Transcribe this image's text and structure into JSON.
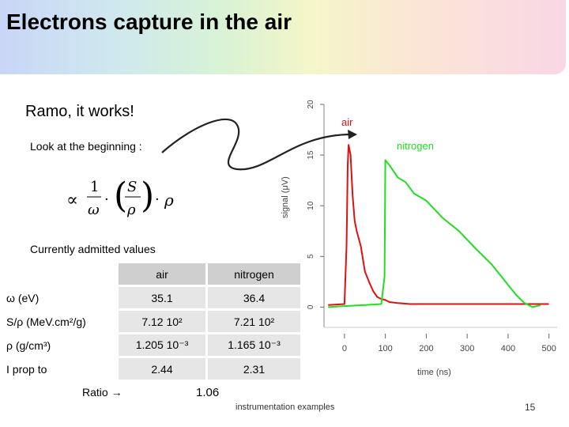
{
  "slide": {
    "title": "Electrons capture in the air",
    "subtitle": "Ramo, it works!",
    "look_text": "Look at the beginning :",
    "formula": {
      "prefix": "∝",
      "one": "1",
      "omega": "ω",
      "dot": "·",
      "s": "S",
      "rho": "ρ",
      "rho2": "ρ"
    },
    "currently_text": "Currently admitted values",
    "table": {
      "headers": [
        "air",
        "nitrogen"
      ],
      "rows": [
        {
          "label": "ω (eV)",
          "air": "35.1",
          "nitrogen": "36.4"
        },
        {
          "label": "S/ρ (MeV.cm²/g)",
          "air": "7.12 10²",
          "nitrogen": "7.21 10²"
        },
        {
          "label": "ρ (g/cm³)",
          "air": "1.205 10⁻³",
          "nitrogen": "1.165 10⁻³"
        },
        {
          "label": "I prop to",
          "air": "2.44",
          "nitrogen": "2.31"
        }
      ]
    },
    "ratio_label": "Ratio",
    "ratio_value": "1.06",
    "footer": "instrumentation examples",
    "page_number": "15",
    "colors": {
      "air": "#dd1111",
      "nitrogen": "#22dd22"
    }
  },
  "chart_data": {
    "type": "line",
    "ylabel": "signal (μV)",
    "xlabel": "time (ns)",
    "xlim": [
      -50,
      520
    ],
    "ylim": [
      -2,
      20
    ],
    "xticks": [
      "0",
      "100",
      "200",
      "300",
      "400",
      "500"
    ],
    "yticks": [
      "0",
      "5",
      "10",
      "15",
      "20"
    ],
    "series": [
      {
        "name": "air",
        "color": "#dd1111",
        "x": [
          -40,
          0,
          5,
          8,
          10,
          15,
          20,
          25,
          30,
          40,
          50,
          60,
          70,
          80,
          90,
          100,
          110,
          130,
          160,
          200,
          250,
          300,
          350,
          400,
          450,
          500
        ],
        "y": [
          0.2,
          0.3,
          6,
          14,
          16,
          15,
          11,
          8.5,
          7.5,
          6,
          3.5,
          2.5,
          1.6,
          1.0,
          0.8,
          0.7,
          0.5,
          0.4,
          0.3,
          0.3,
          0.3,
          0.3,
          0.3,
          0.3,
          0.3,
          0.3
        ]
      },
      {
        "name": "nitrogen",
        "color": "#22dd22",
        "x": [
          -40,
          0,
          50,
          90,
          98,
          100,
          110,
          130,
          150,
          170,
          200,
          240,
          280,
          320,
          360,
          400,
          420,
          440,
          460,
          480
        ],
        "y": [
          0.0,
          0.1,
          0.2,
          0.3,
          3,
          14.5,
          14,
          12.8,
          12.3,
          11.2,
          10.5,
          8.8,
          7.5,
          5.8,
          4.2,
          2.2,
          1.2,
          0.4,
          0.0,
          0.2
        ]
      }
    ]
  }
}
